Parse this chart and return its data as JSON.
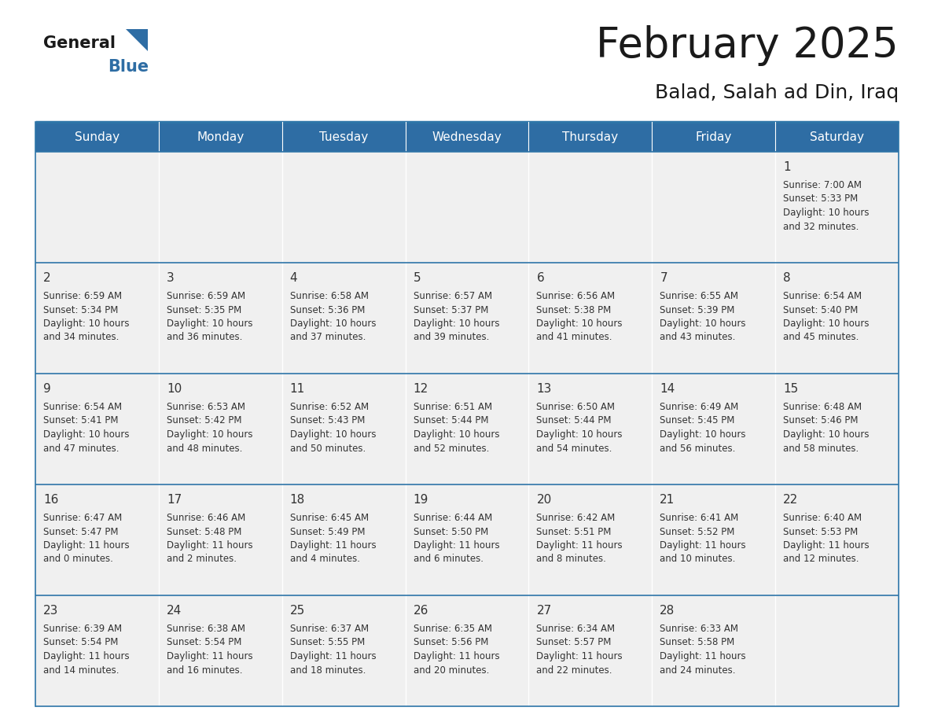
{
  "title": "February 2025",
  "subtitle": "Balad, Salah ad Din, Iraq",
  "header_color": "#2E6DA4",
  "header_text_color": "#FFFFFF",
  "cell_bg_color": "#F0F0F0",
  "border_color": "#2E75A8",
  "text_color": "#333333",
  "day_number_color": "#333333",
  "days_of_week": [
    "Sunday",
    "Monday",
    "Tuesday",
    "Wednesday",
    "Thursday",
    "Friday",
    "Saturday"
  ],
  "weeks": [
    [
      {
        "day": null,
        "info": null
      },
      {
        "day": null,
        "info": null
      },
      {
        "day": null,
        "info": null
      },
      {
        "day": null,
        "info": null
      },
      {
        "day": null,
        "info": null
      },
      {
        "day": null,
        "info": null
      },
      {
        "day": 1,
        "info": "Sunrise: 7:00 AM\nSunset: 5:33 PM\nDaylight: 10 hours\nand 32 minutes."
      }
    ],
    [
      {
        "day": 2,
        "info": "Sunrise: 6:59 AM\nSunset: 5:34 PM\nDaylight: 10 hours\nand 34 minutes."
      },
      {
        "day": 3,
        "info": "Sunrise: 6:59 AM\nSunset: 5:35 PM\nDaylight: 10 hours\nand 36 minutes."
      },
      {
        "day": 4,
        "info": "Sunrise: 6:58 AM\nSunset: 5:36 PM\nDaylight: 10 hours\nand 37 minutes."
      },
      {
        "day": 5,
        "info": "Sunrise: 6:57 AM\nSunset: 5:37 PM\nDaylight: 10 hours\nand 39 minutes."
      },
      {
        "day": 6,
        "info": "Sunrise: 6:56 AM\nSunset: 5:38 PM\nDaylight: 10 hours\nand 41 minutes."
      },
      {
        "day": 7,
        "info": "Sunrise: 6:55 AM\nSunset: 5:39 PM\nDaylight: 10 hours\nand 43 minutes."
      },
      {
        "day": 8,
        "info": "Sunrise: 6:54 AM\nSunset: 5:40 PM\nDaylight: 10 hours\nand 45 minutes."
      }
    ],
    [
      {
        "day": 9,
        "info": "Sunrise: 6:54 AM\nSunset: 5:41 PM\nDaylight: 10 hours\nand 47 minutes."
      },
      {
        "day": 10,
        "info": "Sunrise: 6:53 AM\nSunset: 5:42 PM\nDaylight: 10 hours\nand 48 minutes."
      },
      {
        "day": 11,
        "info": "Sunrise: 6:52 AM\nSunset: 5:43 PM\nDaylight: 10 hours\nand 50 minutes."
      },
      {
        "day": 12,
        "info": "Sunrise: 6:51 AM\nSunset: 5:44 PM\nDaylight: 10 hours\nand 52 minutes."
      },
      {
        "day": 13,
        "info": "Sunrise: 6:50 AM\nSunset: 5:44 PM\nDaylight: 10 hours\nand 54 minutes."
      },
      {
        "day": 14,
        "info": "Sunrise: 6:49 AM\nSunset: 5:45 PM\nDaylight: 10 hours\nand 56 minutes."
      },
      {
        "day": 15,
        "info": "Sunrise: 6:48 AM\nSunset: 5:46 PM\nDaylight: 10 hours\nand 58 minutes."
      }
    ],
    [
      {
        "day": 16,
        "info": "Sunrise: 6:47 AM\nSunset: 5:47 PM\nDaylight: 11 hours\nand 0 minutes."
      },
      {
        "day": 17,
        "info": "Sunrise: 6:46 AM\nSunset: 5:48 PM\nDaylight: 11 hours\nand 2 minutes."
      },
      {
        "day": 18,
        "info": "Sunrise: 6:45 AM\nSunset: 5:49 PM\nDaylight: 11 hours\nand 4 minutes."
      },
      {
        "day": 19,
        "info": "Sunrise: 6:44 AM\nSunset: 5:50 PM\nDaylight: 11 hours\nand 6 minutes."
      },
      {
        "day": 20,
        "info": "Sunrise: 6:42 AM\nSunset: 5:51 PM\nDaylight: 11 hours\nand 8 minutes."
      },
      {
        "day": 21,
        "info": "Sunrise: 6:41 AM\nSunset: 5:52 PM\nDaylight: 11 hours\nand 10 minutes."
      },
      {
        "day": 22,
        "info": "Sunrise: 6:40 AM\nSunset: 5:53 PM\nDaylight: 11 hours\nand 12 minutes."
      }
    ],
    [
      {
        "day": 23,
        "info": "Sunrise: 6:39 AM\nSunset: 5:54 PM\nDaylight: 11 hours\nand 14 minutes."
      },
      {
        "day": 24,
        "info": "Sunrise: 6:38 AM\nSunset: 5:54 PM\nDaylight: 11 hours\nand 16 minutes."
      },
      {
        "day": 25,
        "info": "Sunrise: 6:37 AM\nSunset: 5:55 PM\nDaylight: 11 hours\nand 18 minutes."
      },
      {
        "day": 26,
        "info": "Sunrise: 6:35 AM\nSunset: 5:56 PM\nDaylight: 11 hours\nand 20 minutes."
      },
      {
        "day": 27,
        "info": "Sunrise: 6:34 AM\nSunset: 5:57 PM\nDaylight: 11 hours\nand 22 minutes."
      },
      {
        "day": 28,
        "info": "Sunrise: 6:33 AM\nSunset: 5:58 PM\nDaylight: 11 hours\nand 24 minutes."
      },
      {
        "day": null,
        "info": null
      }
    ]
  ],
  "logo_general_color": "#1a1a1a",
  "logo_blue_color": "#2E6DA4",
  "logo_triangle_color": "#2E6DA4",
  "title_fontsize": 38,
  "subtitle_fontsize": 18,
  "dow_fontsize": 11,
  "day_num_fontsize": 11,
  "info_fontsize": 8.5
}
